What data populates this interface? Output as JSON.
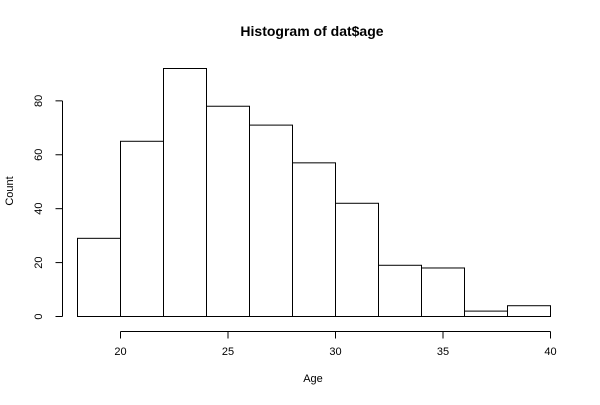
{
  "chart_data": {
    "type": "bar",
    "subtype": "histogram",
    "title": "Histogram of dat$age",
    "xlabel": "Age",
    "ylabel": "Count",
    "bins": [
      {
        "x0": 18,
        "x1": 20,
        "count": 29
      },
      {
        "x0": 20,
        "x1": 22,
        "count": 65
      },
      {
        "x0": 22,
        "x1": 24,
        "count": 92
      },
      {
        "x0": 24,
        "x1": 26,
        "count": 78
      },
      {
        "x0": 26,
        "x1": 28,
        "count": 71
      },
      {
        "x0": 28,
        "x1": 30,
        "count": 57
      },
      {
        "x0": 30,
        "x1": 32,
        "count": 42
      },
      {
        "x0": 32,
        "x1": 34,
        "count": 19
      },
      {
        "x0": 34,
        "x1": 36,
        "count": 18
      },
      {
        "x0": 36,
        "x1": 38,
        "count": 2
      },
      {
        "x0": 38,
        "x1": 40,
        "count": 4
      }
    ],
    "xticks": [
      20,
      25,
      30,
      35,
      40
    ],
    "yticks": [
      0,
      20,
      40,
      60,
      80
    ],
    "xlim": [
      18,
      40
    ],
    "ylim": [
      0,
      92
    ],
    "grid": false,
    "bar_fill": "#ffffff",
    "bar_stroke": "#000000"
  }
}
